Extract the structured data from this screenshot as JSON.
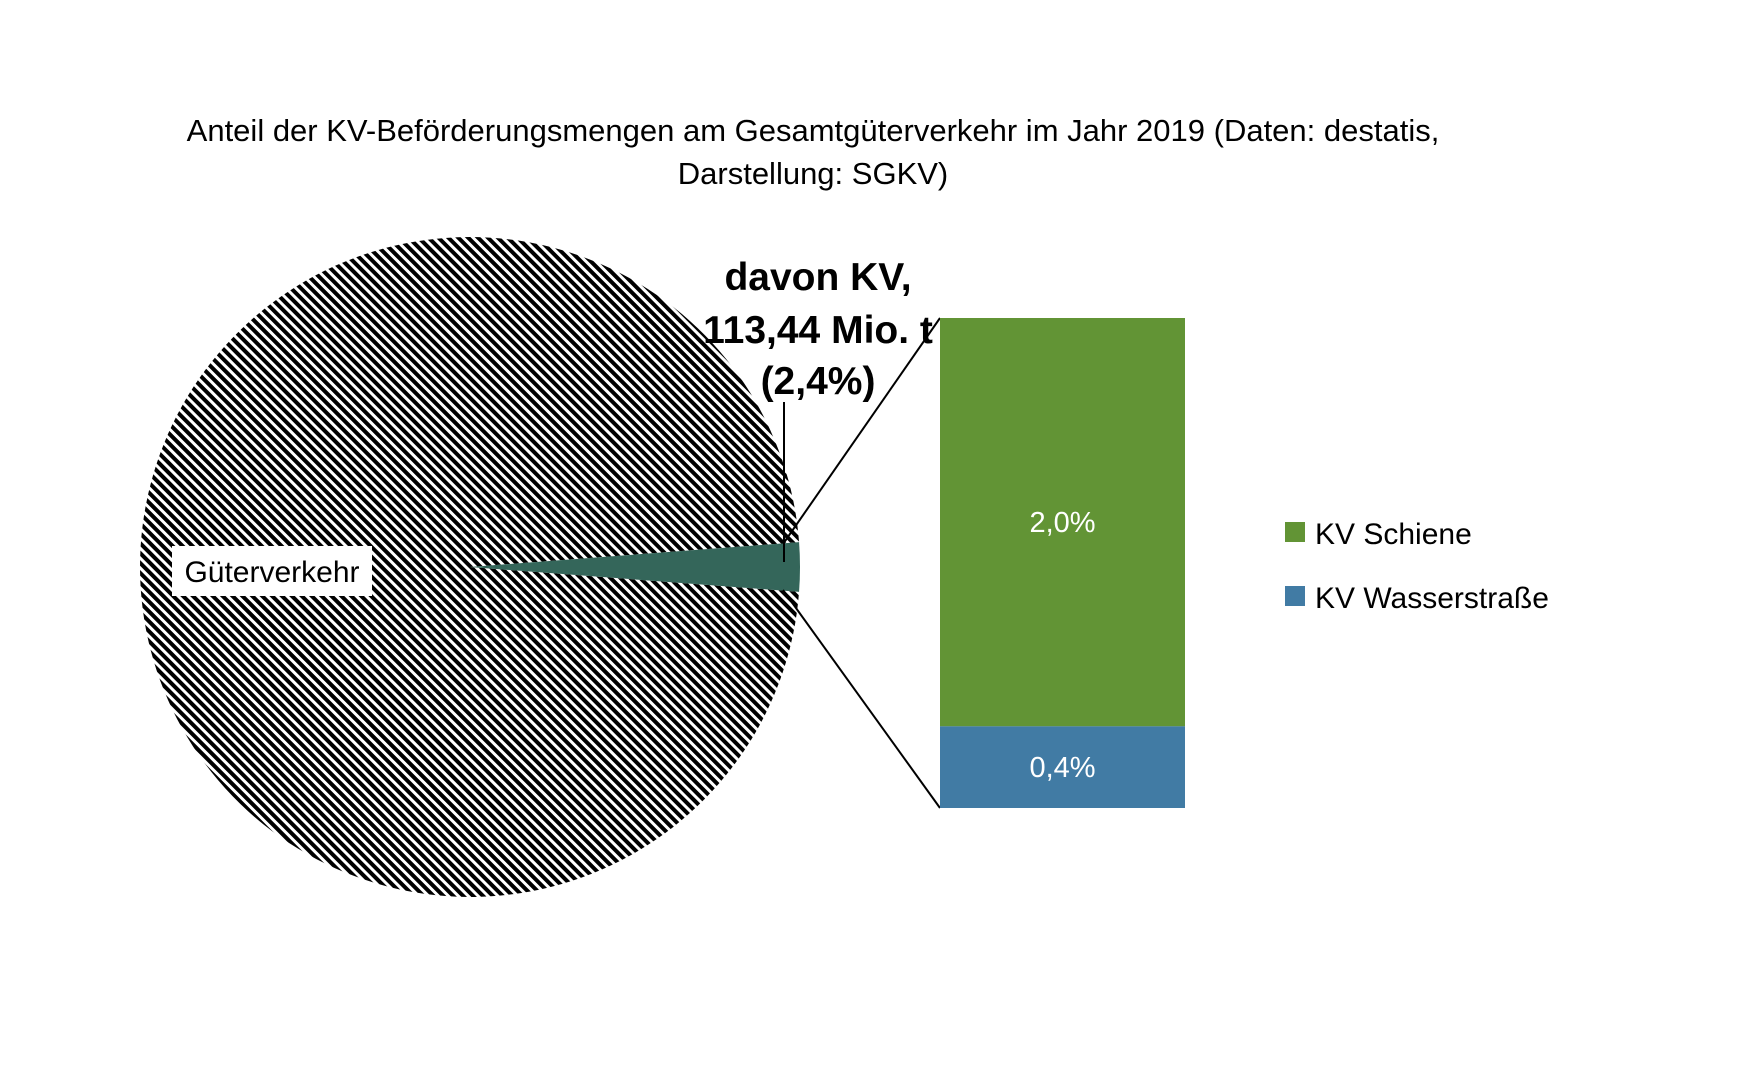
{
  "chart_data": {
    "type": "pie",
    "title": "Anteil der KV-Beförderungsmengen am Gesamtgüterverkehr im Jahr 2019 (Daten: destatis,",
    "subtitle": "Darstellung: SGKV)",
    "pie": {
      "slices": [
        {
          "label": "Güterverkehr",
          "value": 97.6
        },
        {
          "label": "davon KV, 113,44 Mio. t (2,4%)",
          "value": 2.4
        }
      ]
    },
    "annotation": {
      "lines": [
        "davon KV,",
        "113,44 Mio. t",
        "(2,4%)"
      ]
    },
    "bar_of_pie": {
      "segments": [
        {
          "name": "KV Schiene",
          "value": 2.0,
          "label": "2,0%",
          "color": "#629435"
        },
        {
          "name": "KV Wasserstraße",
          "value": 0.4,
          "label": "0,4%",
          "color": "#417ba4"
        }
      ]
    },
    "legend": {
      "placement": "right",
      "items": [
        {
          "label": "KV Schiene",
          "color": "#629435"
        },
        {
          "label": "KV Wasserstraße",
          "color": "#417ba4"
        }
      ]
    },
    "colors": {
      "kv_slice": "#34665a",
      "hatch": "#000000"
    }
  }
}
